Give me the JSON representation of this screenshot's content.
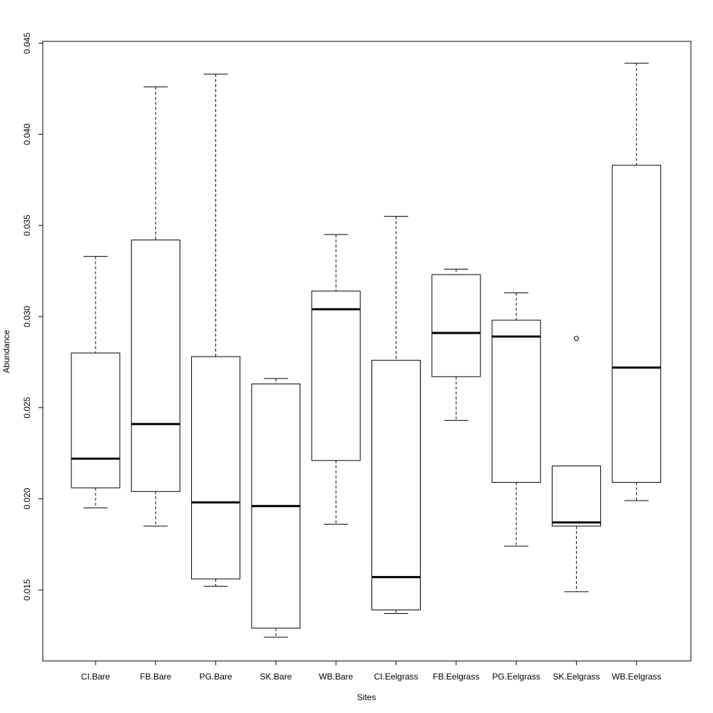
{
  "chart_data": {
    "type": "boxplot",
    "xlabel": "Sites",
    "ylabel": "Abundance",
    "ylim": [
      0.0111,
      0.0451
    ],
    "yticks": [
      0.015,
      0.02,
      0.025,
      0.03,
      0.035,
      0.04,
      0.045
    ],
    "ytick_labels": [
      "0.015",
      "0.020",
      "0.025",
      "0.030",
      "0.035",
      "0.040",
      "0.045"
    ],
    "grid": false,
    "categories": [
      "CI.Bare",
      "FB.Bare",
      "PG.Bare",
      "SK.Bare",
      "WB.Bare",
      "CI.Eelgrass",
      "FB.Eelgrass",
      "PG.Eelgrass",
      "SK.Eelgrass",
      "WB.Eelgrass"
    ],
    "boxes": [
      {
        "min": 0.0195,
        "q1": 0.0206,
        "median": 0.0222,
        "q3": 0.028,
        "max": 0.0333,
        "outliers": []
      },
      {
        "min": 0.0185,
        "q1": 0.0204,
        "median": 0.0241,
        "q3": 0.0342,
        "max": 0.0426,
        "outliers": []
      },
      {
        "min": 0.0152,
        "q1": 0.0156,
        "median": 0.0198,
        "q3": 0.0278,
        "max": 0.0433,
        "outliers": []
      },
      {
        "min": 0.0124,
        "q1": 0.0129,
        "median": 0.0196,
        "q3": 0.0263,
        "max": 0.0266,
        "outliers": []
      },
      {
        "min": 0.0186,
        "q1": 0.0221,
        "median": 0.0304,
        "q3": 0.0314,
        "max": 0.0345,
        "outliers": []
      },
      {
        "min": 0.0137,
        "q1": 0.0139,
        "median": 0.0157,
        "q3": 0.0276,
        "max": 0.0355,
        "outliers": []
      },
      {
        "min": 0.0243,
        "q1": 0.0267,
        "median": 0.0291,
        "q3": 0.0323,
        "max": 0.0326,
        "outliers": []
      },
      {
        "min": 0.0174,
        "q1": 0.0209,
        "median": 0.0289,
        "q3": 0.0298,
        "max": 0.0313,
        "outliers": []
      },
      {
        "min": 0.0149,
        "q1": 0.0185,
        "median": 0.0187,
        "q3": 0.0218,
        "max": 0.0218,
        "outliers": [
          0.0288
        ]
      },
      {
        "min": 0.0199,
        "q1": 0.0209,
        "median": 0.0272,
        "q3": 0.0383,
        "max": 0.0439,
        "outliers": []
      }
    ]
  }
}
